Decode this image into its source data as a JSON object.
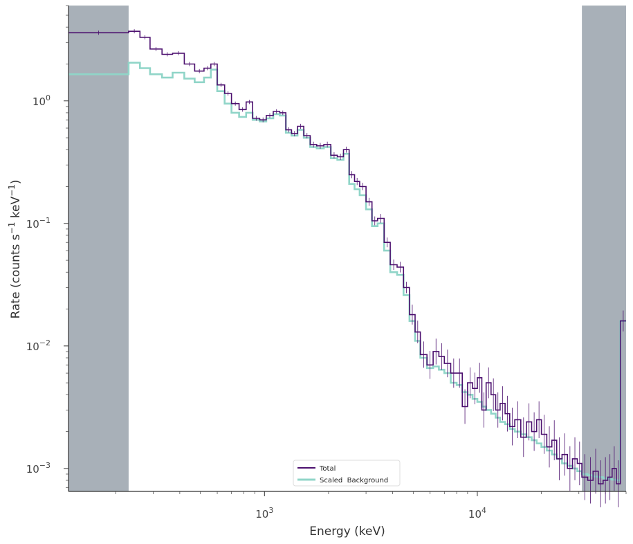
{
  "chart_data": {
    "type": "line",
    "style": "step",
    "x_scale": "log",
    "y_scale": "log",
    "xlabel": "Energy (keV)",
    "ylabel_parts": [
      "Rate (counts s",
      "−1",
      " keV",
      "−1",
      ")"
    ],
    "xlim": [
      120,
      50000
    ],
    "ylim": [
      0.00065,
      6.0
    ],
    "x_ticks": [
      {
        "value": 1000,
        "base": "10",
        "exp": "3"
      },
      {
        "value": 10000,
        "base": "10",
        "exp": "4"
      }
    ],
    "y_ticks": [
      {
        "value": 1,
        "base": "10",
        "exp": "0"
      },
      {
        "value": 0.1,
        "base": "10",
        "exp": "−1"
      },
      {
        "value": 0.01,
        "base": "10",
        "exp": "−2"
      },
      {
        "value": 0.001,
        "base": "10",
        "exp": "−3"
      }
    ],
    "excluded_regions": [
      [
        120,
        230
      ],
      [
        31000,
        50000
      ]
    ],
    "excluded_color": "#a8b0b8",
    "legend_position": "lower-center",
    "series": [
      {
        "name": "Total",
        "color": "#4b0f6e",
        "edges": [
          120,
          230,
          260,
          290,
          330,
          370,
          420,
          470,
          520,
          560,
          600,
          650,
          700,
          760,
          820,
          880,
          950,
          1020,
          1100,
          1180,
          1260,
          1340,
          1430,
          1530,
          1640,
          1760,
          1900,
          2050,
          2200,
          2350,
          2500,
          2650,
          2800,
          3000,
          3200,
          3400,
          3650,
          3900,
          4200,
          4500,
          4800,
          5100,
          5400,
          5800,
          6200,
          6600,
          7000,
          7500,
          8000,
          8500,
          9000,
          9500,
          10000,
          10500,
          11000,
          11600,
          12200,
          12800,
          13500,
          14200,
          15000,
          16000,
          17000,
          18000,
          19000,
          20000,
          21200,
          22400,
          23600,
          25000,
          26500,
          28000,
          29500,
          31000,
          33000,
          35000,
          37000,
          39000,
          41000,
          43000,
          45000,
          47000,
          50000
        ],
        "values": [
          3.6,
          3.7,
          3.3,
          2.65,
          2.4,
          2.45,
          2.0,
          1.75,
          1.85,
          2.0,
          1.35,
          1.15,
          0.95,
          0.85,
          0.98,
          0.72,
          0.7,
          0.76,
          0.82,
          0.8,
          0.58,
          0.54,
          0.62,
          0.52,
          0.44,
          0.43,
          0.44,
          0.36,
          0.35,
          0.4,
          0.25,
          0.22,
          0.2,
          0.15,
          0.105,
          0.11,
          0.07,
          0.046,
          0.044,
          0.03,
          0.018,
          0.013,
          0.0085,
          0.007,
          0.009,
          0.0082,
          0.0072,
          0.006,
          0.006,
          0.0032,
          0.005,
          0.0045,
          0.0055,
          0.003,
          0.005,
          0.004,
          0.003,
          0.0034,
          0.0028,
          0.0022,
          0.0025,
          0.0018,
          0.0024,
          0.002,
          0.0025,
          0.0019,
          0.0015,
          0.0017,
          0.0012,
          0.0013,
          0.001,
          0.0012,
          0.0011,
          0.00085,
          0.0008,
          0.00095,
          0.00075,
          0.0008,
          0.00085,
          0.001,
          0.00075,
          0.016
        ]
      },
      {
        "name": "Scaled  Background",
        "color": "#90d5c8",
        "edges": [
          120,
          230,
          260,
          290,
          330,
          370,
          420,
          470,
          520,
          560,
          600,
          650,
          700,
          760,
          820,
          880,
          950,
          1020,
          1100,
          1180,
          1260,
          1340,
          1430,
          1530,
          1640,
          1760,
          1900,
          2050,
          2200,
          2350,
          2500,
          2650,
          2800,
          3000,
          3200,
          3400,
          3650,
          3900,
          4200,
          4500,
          4800,
          5100,
          5400,
          5800,
          6200,
          6600,
          7000,
          7500,
          8000,
          8500,
          9000,
          9500,
          10000,
          10500,
          11000,
          11600,
          12200,
          12800,
          13500,
          14200,
          15000,
          16000,
          17000,
          18000,
          19000,
          20000,
          21200,
          22400,
          23600,
          25000,
          26500,
          28000,
          29500,
          31000,
          33000,
          35000,
          37000,
          39000,
          41000,
          43000,
          45000,
          47000,
          50000
        ],
        "values": [
          1.65,
          2.05,
          1.85,
          1.65,
          1.55,
          1.7,
          1.52,
          1.42,
          1.55,
          1.8,
          1.2,
          0.95,
          0.8,
          0.74,
          0.8,
          0.7,
          0.68,
          0.72,
          0.78,
          0.76,
          0.55,
          0.52,
          0.58,
          0.5,
          0.42,
          0.41,
          0.42,
          0.34,
          0.33,
          0.37,
          0.21,
          0.19,
          0.17,
          0.13,
          0.095,
          0.1,
          0.06,
          0.04,
          0.038,
          0.026,
          0.016,
          0.011,
          0.008,
          0.0066,
          0.0068,
          0.0064,
          0.006,
          0.005,
          0.0048,
          0.0042,
          0.004,
          0.0037,
          0.0035,
          0.0032,
          0.003,
          0.0028,
          0.0026,
          0.0024,
          0.0023,
          0.0021,
          0.002,
          0.0019,
          0.0018,
          0.0017,
          0.0016,
          0.0015,
          0.0014,
          0.0013,
          0.0012,
          0.0011,
          0.00105,
          0.001,
          0.00095,
          0.0009,
          0.00088,
          0.00086,
          0.00085,
          0.00083,
          0.00082,
          0.00081,
          0.0008,
          0.016
        ]
      }
    ]
  }
}
